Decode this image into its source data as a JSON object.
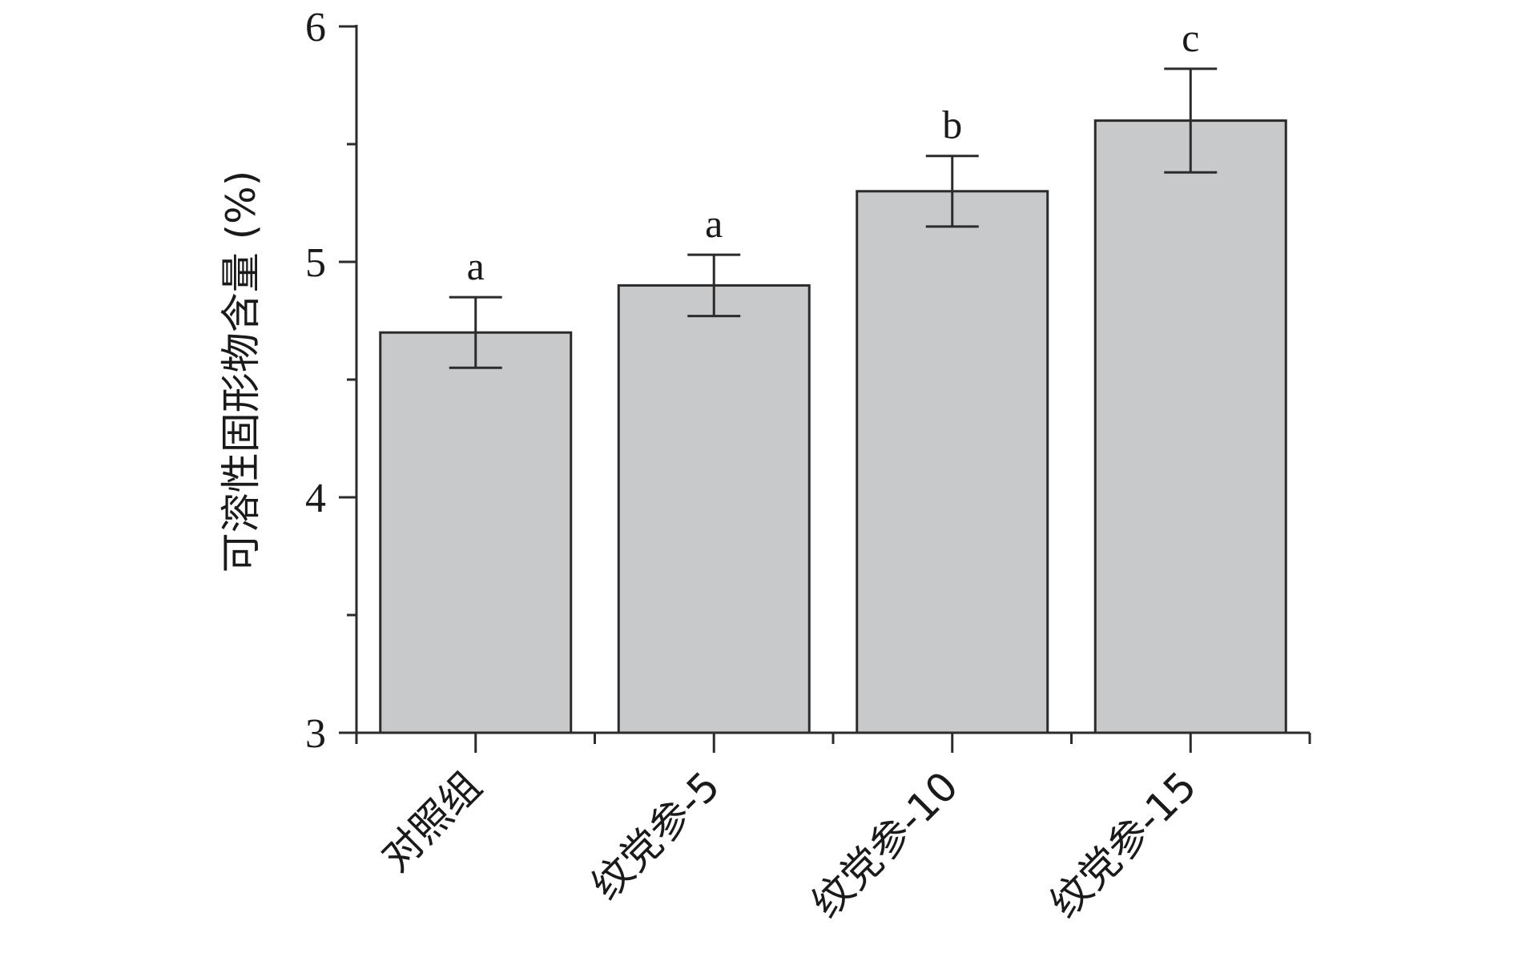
{
  "chart_data": {
    "type": "bar",
    "categories": [
      "对照组",
      "纹党参-5",
      "纹党参-10",
      "纹党参-15"
    ],
    "series": [
      {
        "values": [
          4.7,
          4.9,
          5.3,
          5.6
        ],
        "error": [
          0.15,
          0.13,
          0.15,
          0.22
        ],
        "significance": [
          "a",
          "a",
          "b",
          "c"
        ]
      }
    ],
    "title": "",
    "xlabel": "",
    "ylabel": "可溶性固形物含量 (%)",
    "ylim": [
      3,
      6
    ],
    "y_ticks": [
      3,
      4,
      5,
      6
    ],
    "y_minor_ticks": [
      3.5,
      4.5,
      5.5
    ],
    "grid": false,
    "legend": "none",
    "colors": {
      "bar_fill": "#c8c9cb",
      "bar_stroke": "#2b2b2b",
      "axis": "#2b2b2b",
      "text": "#1a1a1a"
    }
  }
}
